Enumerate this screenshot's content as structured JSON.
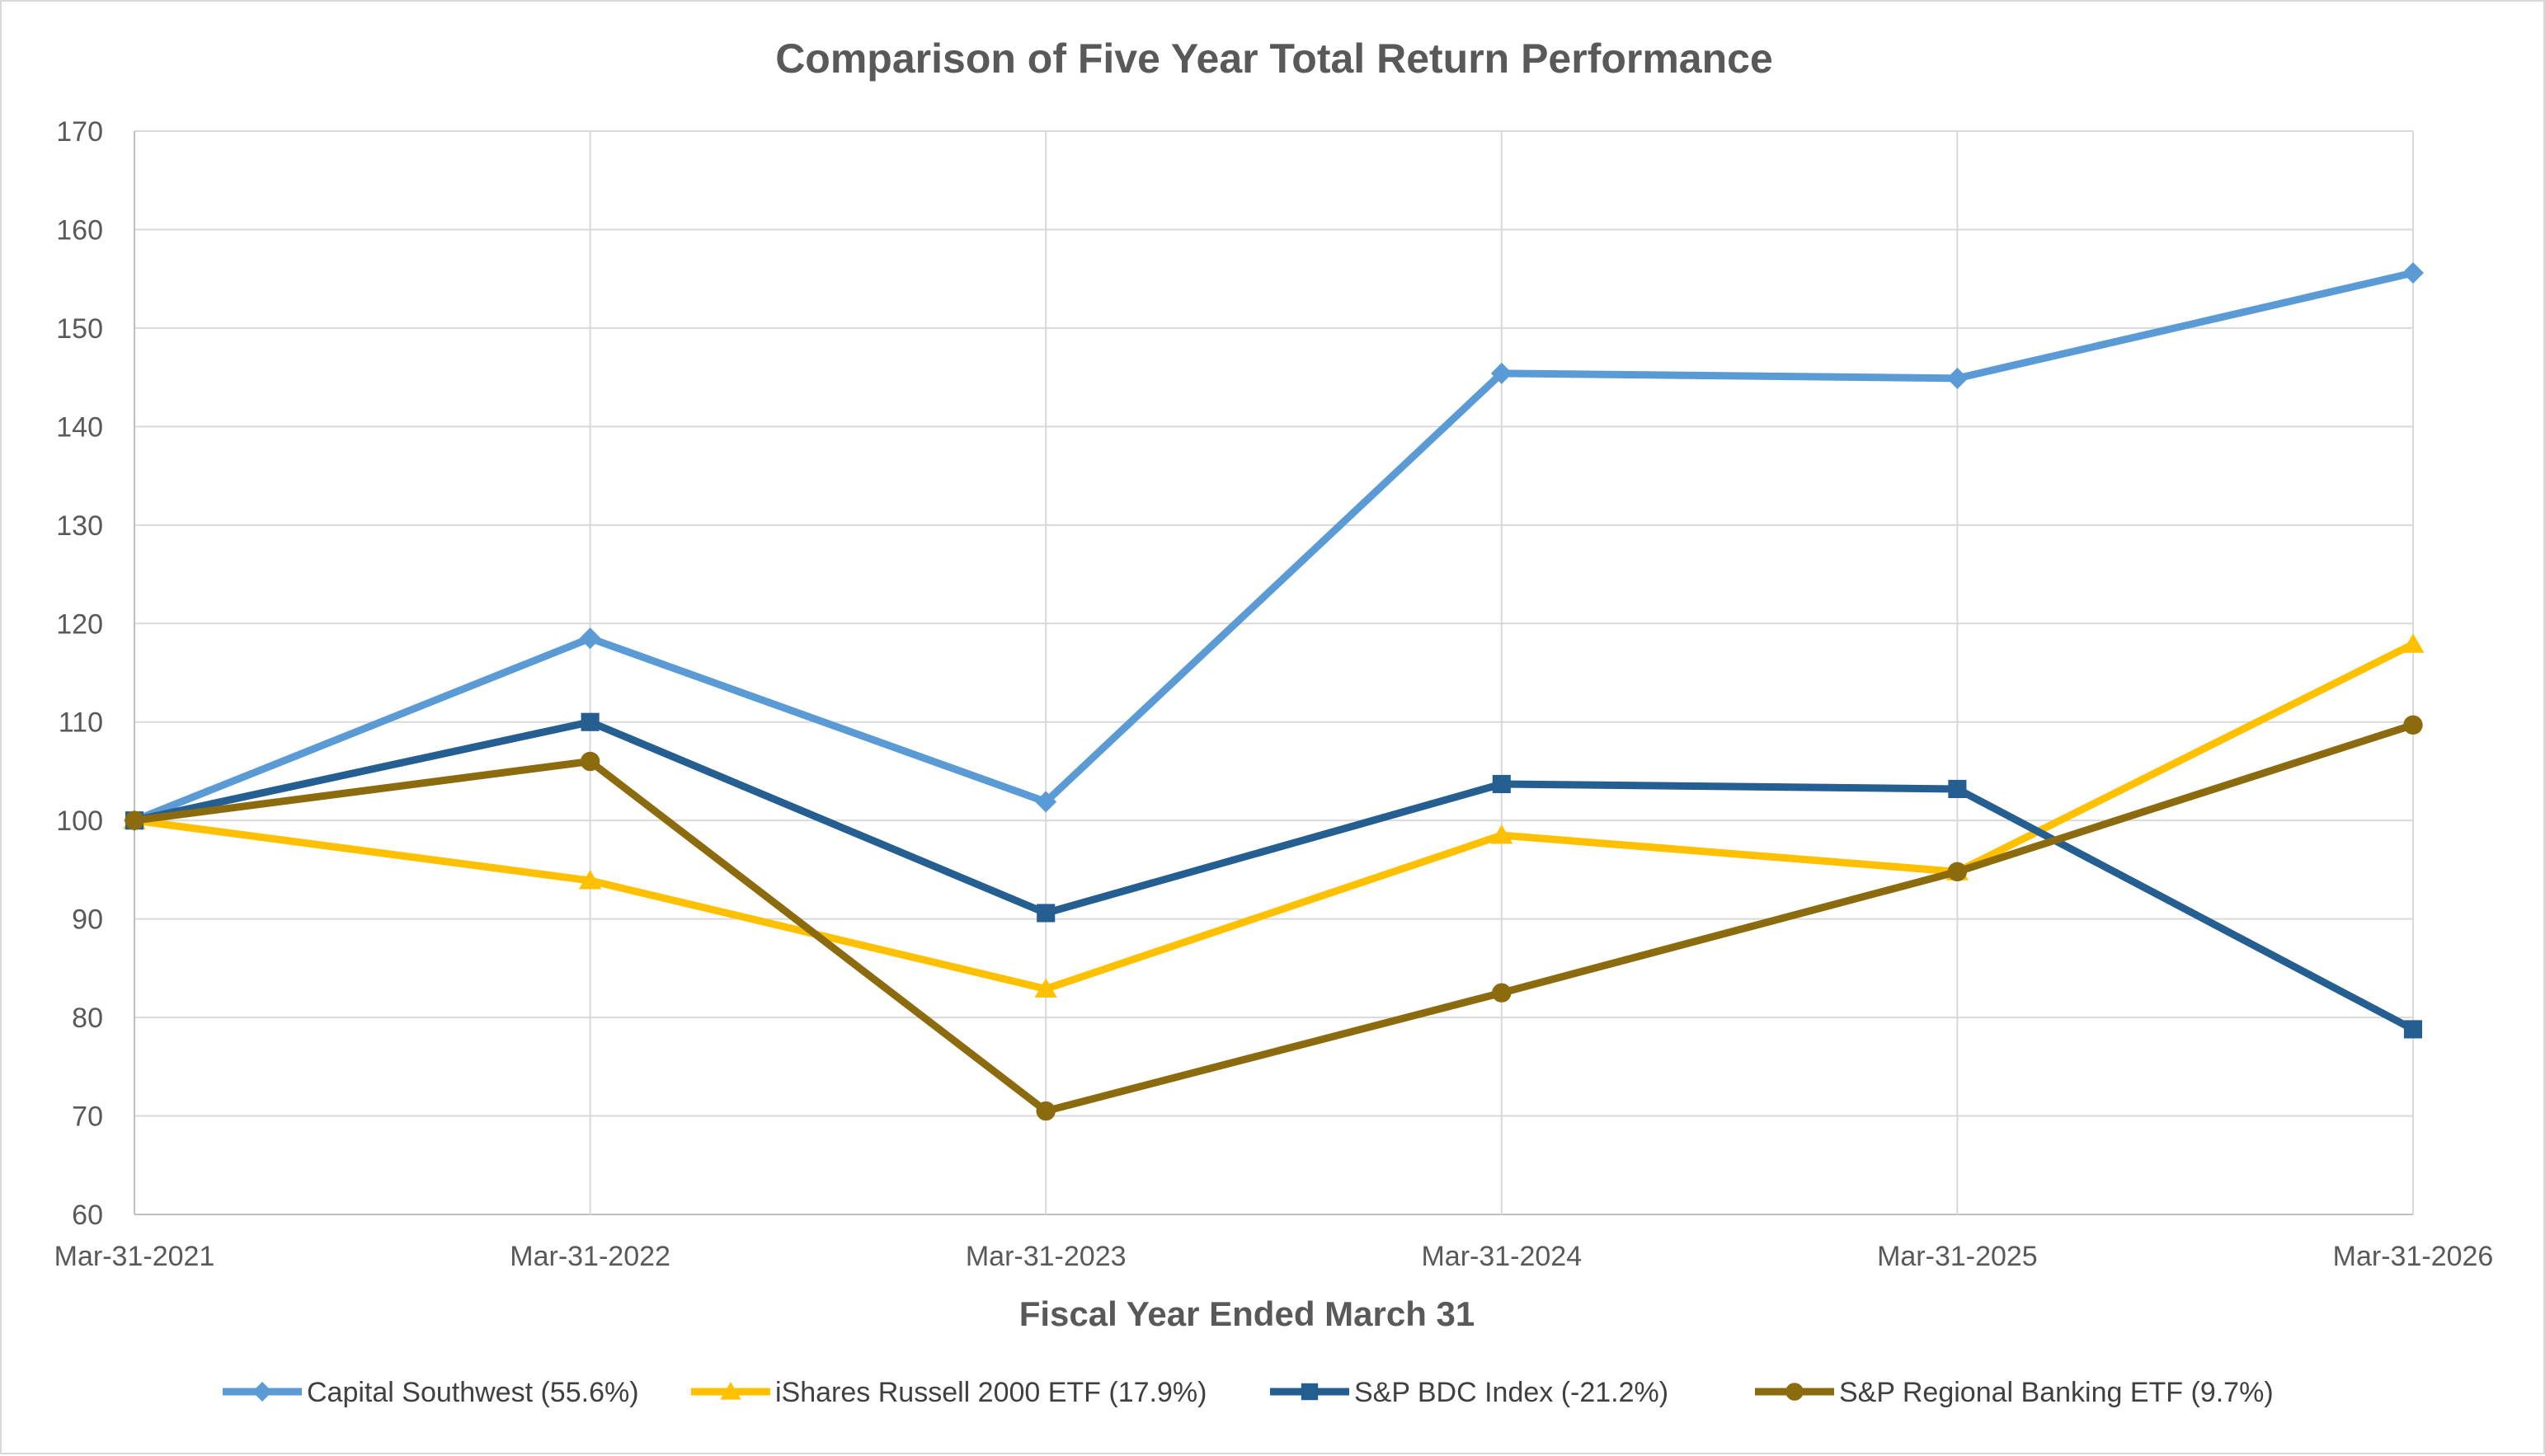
{
  "chart_data": {
    "type": "line",
    "title": "Comparison of Five Year Total Return Performance",
    "xlabel": "Fiscal Year Ended March 31",
    "ylabel": "",
    "categories": [
      "Mar-31-2021",
      "Mar-31-2022",
      "Mar-31-2023",
      "Mar-31-2024",
      "Mar-31-2025",
      "Mar-31-2026"
    ],
    "ylim": [
      60,
      170
    ],
    "yticks": [
      60,
      70,
      80,
      90,
      100,
      110,
      120,
      130,
      140,
      150,
      160,
      170
    ],
    "grid": true,
    "legend_position": "bottom",
    "series": [
      {
        "name": "Capital Southwest (55.6%)",
        "color": "#5b9bd5",
        "marker": "diamond",
        "values": [
          100,
          118.5,
          101.9,
          145.4,
          144.9,
          155.6
        ]
      },
      {
        "name": "iShares Russell 2000 ETF (17.9%)",
        "color": "#ffc000",
        "marker": "triangle",
        "values": [
          100,
          93.9,
          82.9,
          98.5,
          94.8,
          117.9
        ]
      },
      {
        "name": "S&P BDC Index (-21.2%)",
        "color": "#255e91",
        "marker": "square",
        "values": [
          100,
          110,
          90.6,
          103.7,
          103.2,
          78.8
        ]
      },
      {
        "name": "S&P Regional Banking ETF (9.7%)",
        "color": "#8b6b0e",
        "marker": "circle",
        "values": [
          100,
          106,
          70.5,
          82.5,
          94.8,
          109.7
        ]
      }
    ]
  }
}
